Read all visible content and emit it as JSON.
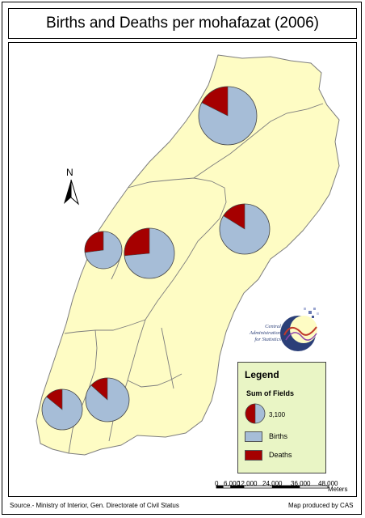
{
  "title": "Births and Deaths per mohafazat (2006)",
  "north": "N",
  "legend": {
    "title": "Legend",
    "subtitle": "Sum of Fields",
    "size_value": "3,100",
    "items": [
      {
        "label": "Births",
        "color": "#a6bdd7"
      },
      {
        "label": "Deaths",
        "color": "#a50000"
      }
    ]
  },
  "scale_bar": {
    "ticks": [
      "0",
      "6,000",
      "12,000",
      "24,000",
      "36,000",
      "48,000"
    ],
    "unit": "Meters"
  },
  "source": "Source.- Ministry of Interior, Gen. Directorate of Civil Status",
  "credit": "Map produced by CAS",
  "logo_text": [
    "Central",
    "Administration",
    "for Statistics"
  ],
  "colors": {
    "land": "#fefcc4",
    "boundary": "#7d7d7d",
    "births": "#a6bdd7",
    "deaths": "#a50000"
  },
  "pies": [
    {
      "deaths_fraction": 0.24,
      "relative_size": 1.0
    },
    {
      "deaths_fraction": 0.17,
      "relative_size": 0.87
    },
    {
      "deaths_fraction": 0.21,
      "relative_size": 0.63
    },
    {
      "deaths_fraction": 0.23,
      "relative_size": 0.87
    },
    {
      "deaths_fraction": 0.14,
      "relative_size": 0.7
    },
    {
      "deaths_fraction": 0.13,
      "relative_size": 0.77
    }
  ]
}
